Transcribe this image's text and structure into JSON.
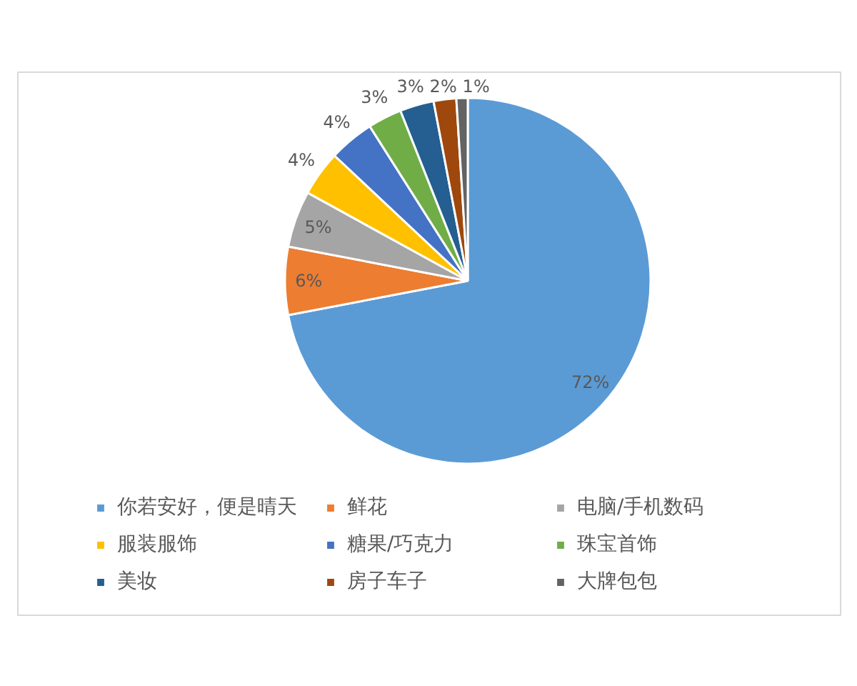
{
  "chart_data": {
    "type": "pie",
    "categories": [
      "你若安好，便是晴天",
      "鲜花",
      "电脑/手机数码",
      "服装服饰",
      "糖果/巧克力",
      "珠宝首饰",
      "美妆",
      "房子车子",
      "大牌包包"
    ],
    "values": [
      72,
      6,
      5,
      4,
      4,
      3,
      3,
      2,
      1
    ],
    "colors": [
      "#5b9bd5",
      "#ed7d31",
      "#a5a5a5",
      "#ffc000",
      "#4472c4",
      "#70ad47",
      "#255e91",
      "#9e480e",
      "#636363"
    ],
    "value_labels": [
      "72%",
      "6%",
      "5%",
      "4%",
      "4%",
      "3%",
      "3%",
      "2%",
      "1%"
    ],
    "legend": "bottom"
  }
}
